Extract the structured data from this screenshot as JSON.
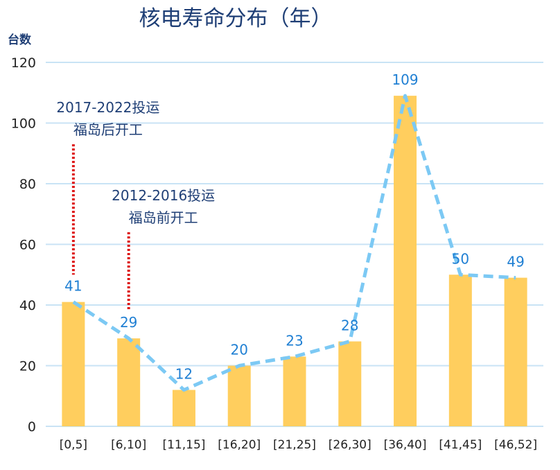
{
  "chart_data": {
    "type": "bar",
    "title": "核电寿命分布（年）",
    "ylabel": "台数",
    "xlabel": "",
    "ylim": [
      0,
      120
    ],
    "yticks": [
      0,
      20,
      40,
      60,
      80,
      100,
      120
    ],
    "grid": true,
    "categories": [
      "[0,5]",
      "[6,10]",
      "[11,15]",
      "[16,20]",
      "[21,25]",
      "[26,30]",
      "[36,40]",
      "[41,45]",
      "[46,52]"
    ],
    "values": [
      41,
      29,
      12,
      20,
      23,
      28,
      109,
      50,
      49
    ],
    "overlay_line": {
      "style": "dashed",
      "values": [
        41,
        29,
        12,
        20,
        23,
        28,
        109,
        50,
        49
      ]
    },
    "annotations": [
      {
        "category": "[0,5]",
        "lines": [
          "2017-2022投运",
          "福岛后开工"
        ],
        "marker_from": 93,
        "marker_to": 50
      },
      {
        "category": "[6,10]",
        "lines": [
          "2012-2016投运",
          "福岛前开工"
        ],
        "marker_from": 64,
        "marker_to": 38
      }
    ],
    "colors": {
      "bar": "#FFCE5E",
      "line": "#7CC9F4",
      "grid": "#C9E3F5",
      "label": "#1F7FD3",
      "title": "#1F3F76",
      "annotation": "#1F3F76",
      "marker": "#DD1111",
      "tick": "#222222"
    }
  }
}
